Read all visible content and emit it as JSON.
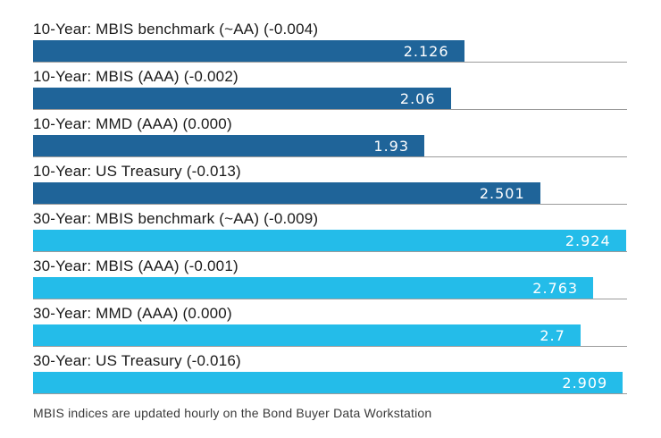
{
  "chart_data": {
    "type": "bar",
    "orientation": "horizontal",
    "title": "",
    "xlabel": "",
    "ylabel": "",
    "xlim": [
      0,
      2.93
    ],
    "grid": "baseline-per-bar",
    "legend_position": "none",
    "groups": {
      "ten_year_color": "#1f6499",
      "thirty_year_color": "#24bce9"
    },
    "rows": [
      {
        "label": "10-Year: MBIS benchmark (~AA) (-0.004)",
        "group": "10-Year",
        "value": 2.126,
        "display_value": "2.126",
        "change": "-0.004"
      },
      {
        "label": "10-Year: MBIS (AAA) (-0.002)",
        "group": "10-Year",
        "value": 2.06,
        "display_value": "2.06",
        "change": "-0.002"
      },
      {
        "label": "10-Year: MMD (AAA) (0.000)",
        "group": "10-Year",
        "value": 1.93,
        "display_value": "1.93",
        "change": "0.000"
      },
      {
        "label": "10-Year: US Treasury (-0.013)",
        "group": "10-Year",
        "value": 2.501,
        "display_value": "2.501",
        "change": "-0.013"
      },
      {
        "label": "30-Year: MBIS benchmark (~AA) (-0.009)",
        "group": "30-Year",
        "value": 2.924,
        "display_value": "2.924",
        "change": "-0.009"
      },
      {
        "label": "30-Year: MBIS (AAA) (-0.001)",
        "group": "30-Year",
        "value": 2.763,
        "display_value": "2.763",
        "change": "-0.001"
      },
      {
        "label": "30-Year: MMD (AAA) (0.000)",
        "group": "30-Year",
        "value": 2.7,
        "display_value": "2.7",
        "change": "0.000"
      },
      {
        "label": "30-Year: US Treasury (-0.016)",
        "group": "30-Year",
        "value": 2.909,
        "display_value": "2.909",
        "change": "-0.016"
      }
    ]
  },
  "footnote": "MBIS indices are updated hourly on the Bond Buyer Data Workstation"
}
